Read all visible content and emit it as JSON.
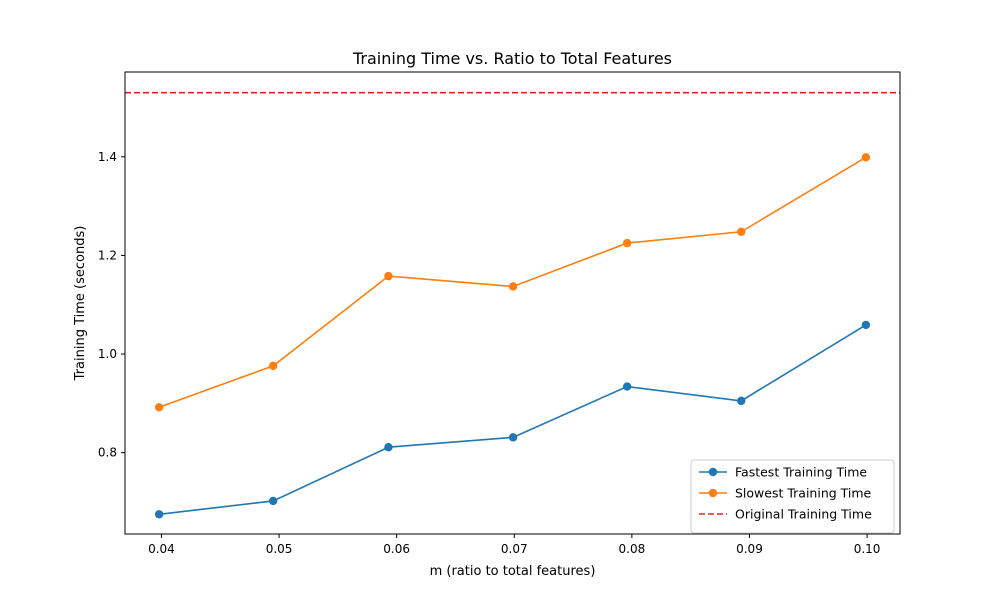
{
  "chart_data": {
    "type": "line",
    "title": "Training Time vs. Ratio to Total Features",
    "xlabel": "m (ratio to total features)",
    "ylabel": "Training Time (seconds)",
    "x": [
      0.0398,
      0.0495,
      0.0593,
      0.0699,
      0.0796,
      0.0893,
      0.0999
    ],
    "xlim": [
      0.0369,
      0.1028
    ],
    "ylim": [
      0.635,
      1.572
    ],
    "xticks": [
      "0.04",
      "0.05",
      "0.06",
      "0.07",
      "0.08",
      "0.09",
      "0.10"
    ],
    "xtick_values": [
      0.04,
      0.05,
      0.06,
      0.07,
      0.08,
      0.09,
      0.1
    ],
    "yticks": [
      "0.8",
      "1.0",
      "1.2",
      "1.4"
    ],
    "ytick_values": [
      0.8,
      1.0,
      1.2,
      1.4
    ],
    "series": [
      {
        "name": "Fastest Training Time",
        "color": "#1f77b4",
        "style": "solid-marker",
        "values": [
          0.675,
          0.702,
          0.811,
          0.831,
          0.934,
          0.905,
          1.059
        ]
      },
      {
        "name": "Slowest Training Time",
        "color": "#ff7f0e",
        "style": "solid-marker",
        "values": [
          0.892,
          0.976,
          1.158,
          1.137,
          1.225,
          1.248,
          1.399
        ]
      }
    ],
    "hlines": [
      {
        "name": "Original Training Time",
        "color": "#d62728",
        "style": "dashed",
        "value": 1.53
      }
    ],
    "legend": "lower-right",
    "grid": false
  }
}
